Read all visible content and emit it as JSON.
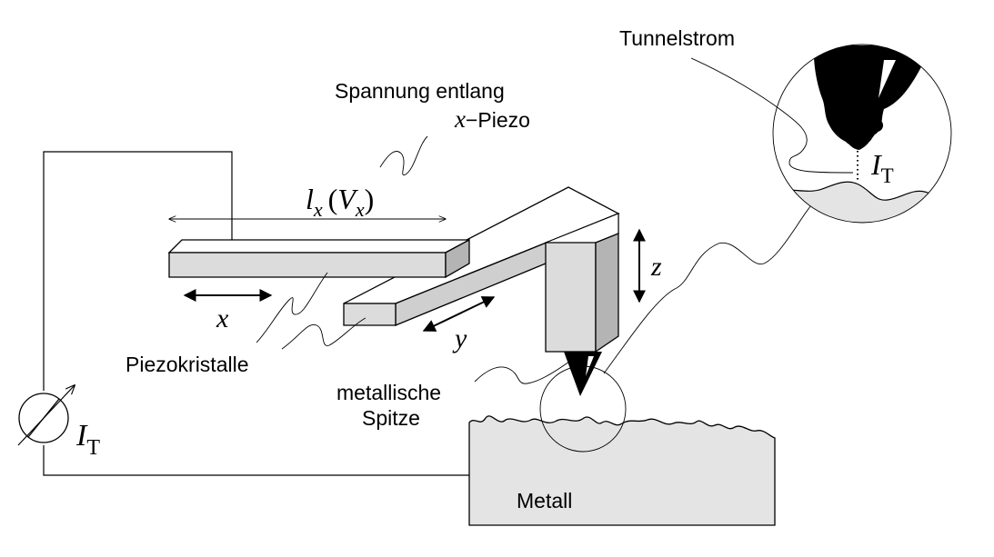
{
  "labels": {
    "spannung_line1": "Spannung entlang",
    "spannung_x": "x",
    "spannung_suffix": "−Piezo",
    "length_l": "l",
    "length_sub": "x",
    "length_paren_open": "(",
    "length_V": "V",
    "length_V_sub": "x",
    "length_paren_close": ")",
    "axis_x": "x",
    "axis_y": "y",
    "axis_z": "z",
    "piezokristalle": "Piezokristalle",
    "metallische": "metallische",
    "spitze": "Spitze",
    "metall": "Metall",
    "tunnelstrom": "Tunnelstrom",
    "current_I": "I",
    "current_T": "T",
    "inset_I": "I",
    "inset_T": "T"
  },
  "colors": {
    "piezo_top": "#ffffff",
    "piezo_front": "#dcdcdc",
    "piezo_side": "#b4b4b4",
    "metal_fill": "#e4e4e4",
    "tip": "#000000"
  }
}
